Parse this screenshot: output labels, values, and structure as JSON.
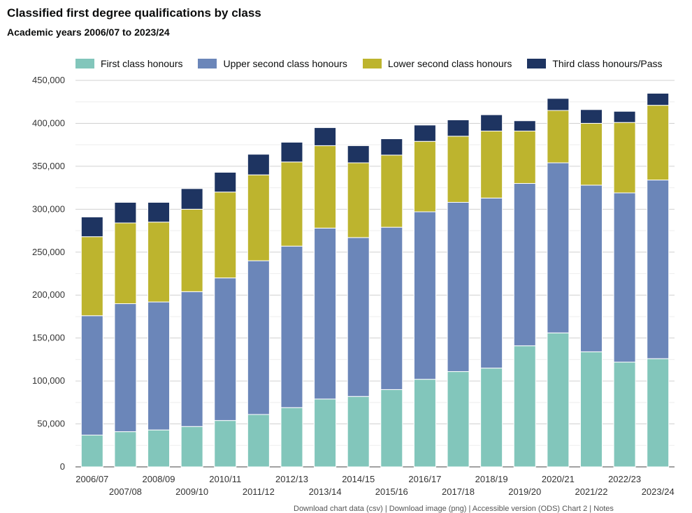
{
  "chart_data": {
    "type": "bar",
    "stacked": true,
    "title": "Classified first degree qualifications by class",
    "subtitle": "Academic years 2006/07 to 2023/24",
    "xlabel": "",
    "ylabel": "",
    "ylim": [
      0,
      450000
    ],
    "yticks": [
      "0",
      "50,000",
      "100,000",
      "150,000",
      "200,000",
      "250,000",
      "300,000",
      "350,000",
      "400,000",
      "450,000"
    ],
    "grid": true,
    "legend_position": "top",
    "categories": [
      "2006/07",
      "2007/08",
      "2008/09",
      "2009/10",
      "2010/11",
      "2011/12",
      "2012/13",
      "2013/14",
      "2014/15",
      "2015/16",
      "2016/17",
      "2017/18",
      "2018/19",
      "2019/20",
      "2020/21",
      "2021/22",
      "2022/23",
      "2023/24"
    ],
    "series": [
      {
        "name": "First class honours",
        "color": "#82c6bb",
        "values": [
          37000,
          41000,
          43000,
          47000,
          54000,
          61000,
          69000,
          79000,
          82000,
          90000,
          102000,
          111000,
          115000,
          141000,
          156000,
          134000,
          122000,
          126000
        ]
      },
      {
        "name": "Upper second class honours",
        "color": "#6b86b9",
        "values": [
          139000,
          149000,
          149000,
          157000,
          166000,
          179000,
          188000,
          199000,
          185000,
          189000,
          195000,
          197000,
          198000,
          189000,
          198000,
          194000,
          197000,
          208000
        ]
      },
      {
        "name": "Lower second class honours",
        "color": "#bdb42e",
        "values": [
          92000,
          94000,
          93000,
          96000,
          100000,
          100000,
          98000,
          96000,
          87000,
          84000,
          82000,
          77000,
          78000,
          61000,
          61000,
          72000,
          82000,
          87000
        ]
      },
      {
        "name": "Third class honours/Pass",
        "color": "#1e3461",
        "values": [
          23000,
          24000,
          23000,
          24000,
          23000,
          24000,
          23000,
          21000,
          20000,
          19000,
          19000,
          19000,
          19000,
          12000,
          14000,
          16000,
          13000,
          14000
        ]
      }
    ]
  },
  "footnote": "Download chart data (csv) | Download image (png) | Accessible version (ODS) Chart 2 | Notes"
}
